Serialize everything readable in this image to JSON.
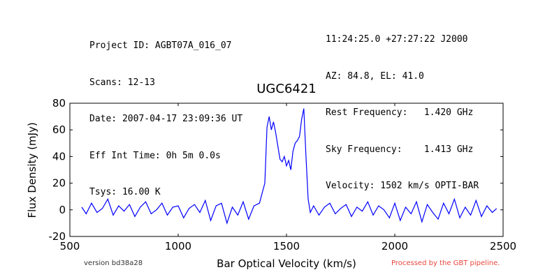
{
  "header": {
    "left": [
      "Project ID: AGBT07A_016_07",
      "Scans: 12-13",
      "Date: 2007-04-17 23:09:36 UT",
      "Eff Int Time: 0h 5m 0.0s",
      "Tsys: 16.00 K"
    ],
    "right": [
      "11:24:25.0 +27:27:22 J2000",
      "AZ: 84.8, EL: 41.0",
      "Rest Frequency:   1.420 GHz",
      "Sky Frequency:    1.413 GHz",
      "Velocity: 1502 km/s OPTI-BAR"
    ]
  },
  "footer": {
    "version": "version bd38a28",
    "pipeline": "Processed by the GBT pipeline."
  },
  "colors": {
    "line": "#0000ff",
    "pipeline_text": "#e8453c",
    "version_text": "#333333"
  },
  "chart_data": {
    "type": "line",
    "title": "UGC6421",
    "xlabel": "Bar Optical Velocity (km/s)",
    "ylabel": "Flux Density (mJy)",
    "xlim": [
      500,
      2500
    ],
    "ylim": [
      -20,
      80
    ],
    "xticks": [
      500,
      1000,
      1500,
      2000,
      2500
    ],
    "yticks": [
      -20,
      0,
      20,
      40,
      60,
      80
    ],
    "grid": false,
    "series": [
      {
        "x": [
          555,
          575,
          600,
          625,
          650,
          675,
          700,
          725,
          750,
          775,
          800,
          825,
          850,
          875,
          900,
          925,
          950,
          975,
          1000,
          1025,
          1050,
          1075,
          1100,
          1125,
          1150,
          1175,
          1200,
          1225,
          1250,
          1275,
          1300,
          1325,
          1350,
          1375,
          1400,
          1410,
          1420,
          1430,
          1440,
          1450,
          1460,
          1470,
          1480,
          1490,
          1500,
          1510,
          1520,
          1530,
          1540,
          1550,
          1560,
          1570,
          1580,
          1590,
          1600,
          1610,
          1625,
          1650,
          1675,
          1700,
          1725,
          1750,
          1775,
          1800,
          1825,
          1850,
          1875,
          1900,
          1925,
          1950,
          1975,
          2000,
          2025,
          2050,
          2075,
          2100,
          2125,
          2150,
          2175,
          2200,
          2225,
          2250,
          2275,
          2300,
          2325,
          2350,
          2375,
          2400,
          2425,
          2450,
          2470
        ],
        "values": [
          2,
          -3,
          5,
          -2,
          1,
          8,
          -4,
          3,
          -1,
          4,
          -5,
          2,
          6,
          -3,
          0,
          5,
          -4,
          2,
          3,
          -6,
          1,
          4,
          -2,
          7,
          -8,
          3,
          5,
          -10,
          2,
          -4,
          6,
          -7,
          3,
          5,
          20,
          62,
          70,
          60,
          66,
          58,
          48,
          38,
          36,
          40,
          33,
          37,
          30,
          44,
          50,
          52,
          55,
          68,
          76,
          40,
          8,
          -2,
          3,
          -4,
          2,
          5,
          -3,
          1,
          4,
          -5,
          2,
          -1,
          6,
          -4,
          3,
          0,
          -6,
          5,
          -8,
          2,
          -3,
          6,
          -9,
          4,
          -2,
          -7,
          5,
          -3,
          8,
          -6,
          2,
          -4,
          7,
          -5,
          3,
          -2,
          1
        ]
      }
    ]
  }
}
